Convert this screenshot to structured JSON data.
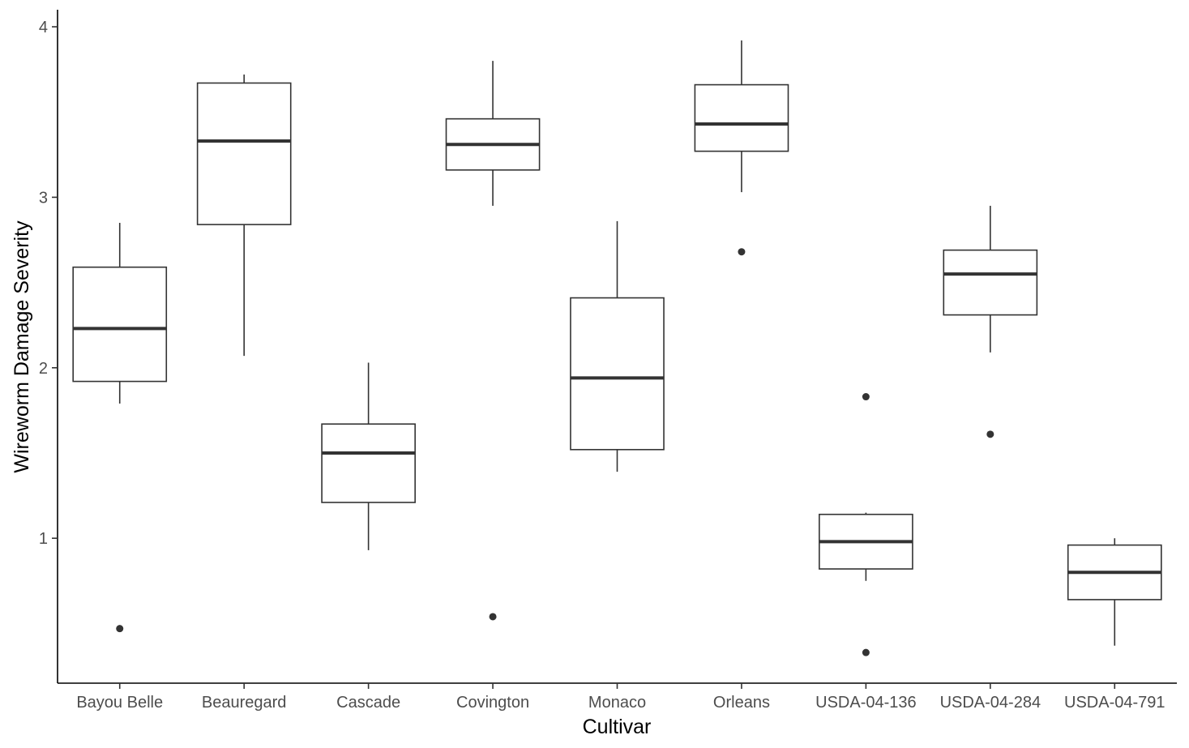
{
  "chart_data": {
    "type": "boxplot",
    "title": "",
    "xlabel": "Cultivar",
    "ylabel": "Wireworm Damage Severity",
    "ylim": [
      0.15,
      4.1
    ],
    "yticks": [
      1,
      2,
      3,
      4
    ],
    "ytick_labels": [
      "1",
      "2",
      "3",
      "4"
    ],
    "grid": false,
    "categories": [
      "Bayou Belle",
      "Beauregard",
      "Cascade",
      "Covington",
      "Monaco",
      "Orleans",
      "USDA-04-136",
      "USDA-04-284",
      "USDA-04-791"
    ],
    "boxes": [
      {
        "whisker_low": 1.79,
        "q1": 1.92,
        "median": 2.23,
        "q3": 2.59,
        "whisker_high": 2.85,
        "outliers": [
          0.47
        ]
      },
      {
        "whisker_low": 2.07,
        "q1": 2.84,
        "median": 3.33,
        "q3": 3.67,
        "whisker_high": 3.72,
        "outliers": []
      },
      {
        "whisker_low": 0.93,
        "q1": 1.21,
        "median": 1.5,
        "q3": 1.67,
        "whisker_high": 2.03,
        "outliers": []
      },
      {
        "whisker_low": 2.95,
        "q1": 3.16,
        "median": 3.31,
        "q3": 3.46,
        "whisker_high": 3.8,
        "outliers": [
          0.54
        ]
      },
      {
        "whisker_low": 1.39,
        "q1": 1.52,
        "median": 1.94,
        "q3": 2.41,
        "whisker_high": 2.86,
        "outliers": []
      },
      {
        "whisker_low": 3.03,
        "q1": 3.27,
        "median": 3.43,
        "q3": 3.66,
        "whisker_high": 3.92,
        "outliers": [
          2.68
        ]
      },
      {
        "whisker_low": 0.75,
        "q1": 0.82,
        "median": 0.98,
        "q3": 1.14,
        "whisker_high": 1.15,
        "outliers": [
          1.83,
          0.33
        ]
      },
      {
        "whisker_low": 2.09,
        "q1": 2.31,
        "median": 2.55,
        "q3": 2.69,
        "whisker_high": 2.95,
        "outliers": [
          1.61
        ]
      },
      {
        "whisker_low": 0.37,
        "q1": 0.64,
        "median": 0.8,
        "q3": 0.96,
        "whisker_high": 1.0,
        "outliers": []
      }
    ]
  }
}
